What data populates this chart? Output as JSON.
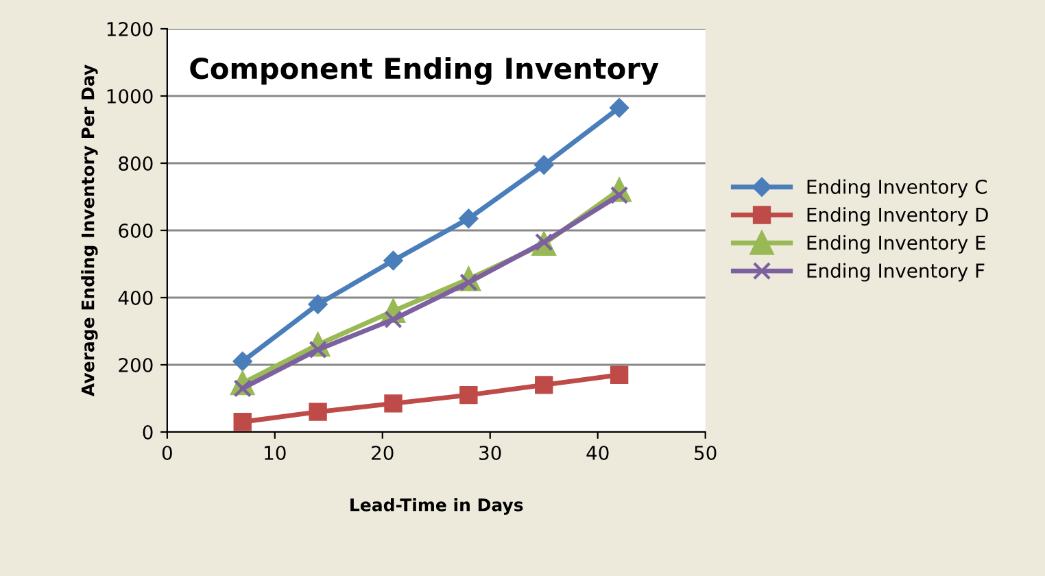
{
  "chart_data": {
    "type": "line",
    "title": "Component Ending Inventory",
    "xlabel": "Lead-Time in Days",
    "ylabel": "Average Ending Inventory Per Day",
    "x": [
      7,
      14,
      21,
      28,
      35,
      42
    ],
    "series": [
      {
        "name": "Ending Inventory C",
        "color": "#4a7ebb",
        "marker": "diamond",
        "values": [
          210,
          380,
          510,
          635,
          795,
          965
        ]
      },
      {
        "name": "Ending Inventory D",
        "color": "#be4b48",
        "marker": "square",
        "values": [
          30,
          60,
          85,
          110,
          140,
          170
        ]
      },
      {
        "name": "Ending Inventory E",
        "color": "#98b954",
        "marker": "triangle",
        "values": [
          145,
          260,
          360,
          455,
          560,
          720
        ]
      },
      {
        "name": "Ending Inventory F",
        "color": "#7d60a0",
        "marker": "cross",
        "values": [
          130,
          245,
          335,
          445,
          565,
          705
        ]
      }
    ],
    "xlim": [
      0,
      50
    ],
    "xticks": [
      0,
      10,
      20,
      30,
      40,
      50
    ],
    "ylim": [
      0,
      1200
    ],
    "yticks": [
      0,
      200,
      400,
      600,
      800,
      1000,
      1200
    ],
    "grid": "y",
    "legend": "right",
    "line_style": "solid"
  }
}
